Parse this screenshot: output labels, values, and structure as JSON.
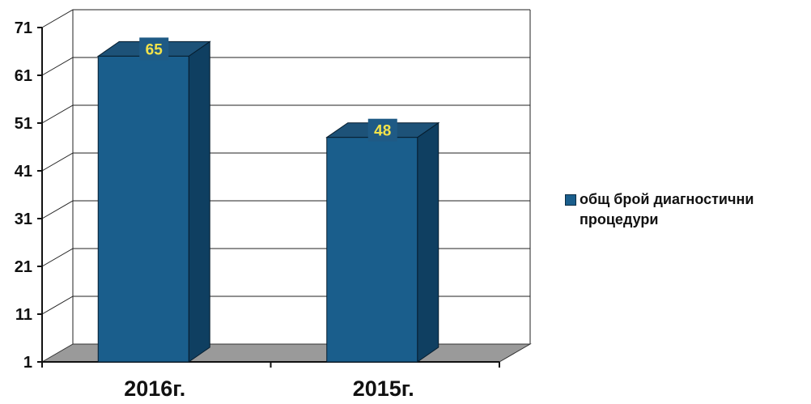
{
  "chart_data": {
    "type": "bar",
    "categories": [
      "2016г.",
      "2015г."
    ],
    "series": [
      {
        "name": "общ брой диагностични процедури",
        "values": [
          65,
          48
        ]
      }
    ],
    "yticks": [
      1,
      11,
      21,
      31,
      41,
      51,
      61,
      71
    ],
    "ylim": [
      1,
      71
    ],
    "grid": true,
    "legend_position": "right",
    "three_d": true
  },
  "colors": {
    "bar_front": "#1a5e8c",
    "bar_side": "#0f3f61",
    "bar_top": "#1d5278",
    "floor": "#9a9a9a",
    "label_box": "#1f5a85",
    "label_text": "#f2e24a"
  }
}
